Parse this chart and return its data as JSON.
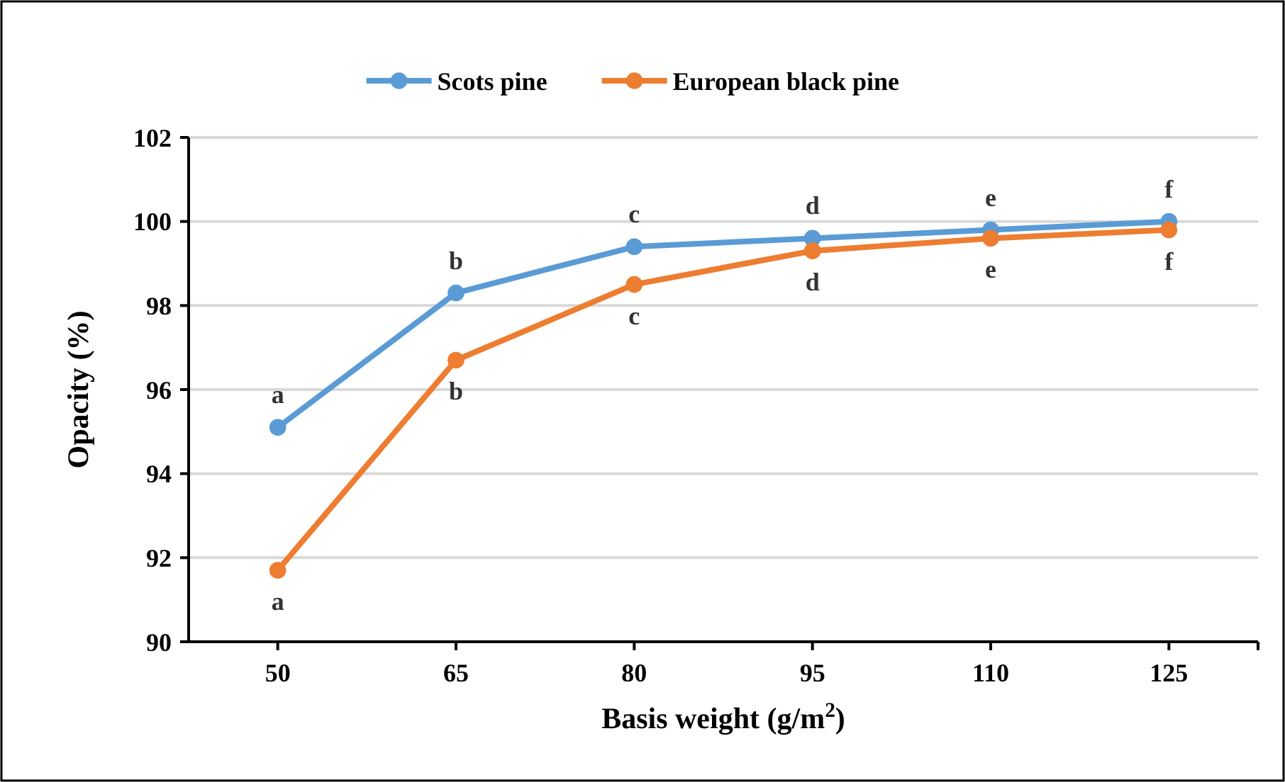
{
  "chart_data": {
    "type": "line",
    "xlabel": "Basis weight (g/m$^{2}$)",
    "ylabel": "Opacity (%)",
    "categories": [
      "50",
      "65",
      "80",
      "95",
      "110",
      "125"
    ],
    "series": [
      {
        "name": "Scots pine",
        "color": "#5b9bd5",
        "values": [
          95.1,
          98.3,
          99.4,
          99.6,
          99.8,
          100.0
        ]
      },
      {
        "name": "European black pine",
        "color": "#ed7d31",
        "values": [
          91.7,
          96.7,
          98.5,
          99.3,
          99.6,
          99.8
        ]
      }
    ],
    "ylim": [
      90,
      102
    ],
    "yticks": [
      90,
      92,
      94,
      96,
      98,
      100,
      102
    ],
    "grid": "y",
    "legend": "top",
    "marker": "circle",
    "line_style": "solid",
    "annotations": [
      {
        "text": "a",
        "x": "50",
        "y": 95.1
      },
      {
        "text": "b",
        "x": "65",
        "y": 98.3
      },
      {
        "text": "c",
        "x": "80",
        "y": 99.4
      },
      {
        "text": "d",
        "x": "95",
        "y": 99.6
      },
      {
        "text": "e",
        "x": "110",
        "y": 99.8
      },
      {
        "text": "f",
        "x": "125",
        "y": 100.0
      },
      {
        "text": "a",
        "x": "50",
        "y": 91.7
      },
      {
        "text": "b",
        "x": "65",
        "y": 96.7
      },
      {
        "text": "c",
        "x": "80",
        "y": 98.5
      },
      {
        "text": "d",
        "x": "95",
        "y": 99.3
      },
      {
        "text": "e",
        "x": "110",
        "y": 99.6
      },
      {
        "text": "f",
        "x": "125",
        "y": 99.8
      }
    ]
  }
}
